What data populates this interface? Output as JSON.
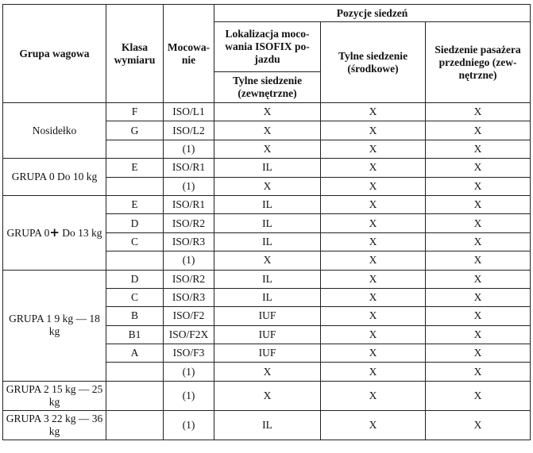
{
  "headers": {
    "weight_group": "Grupa wagowa",
    "size_class": "Klasa wymiaru",
    "mounting": "Mocowa- nie",
    "seat_positions": "Pozycje siedzeń",
    "isofix_location": "Lokalizacja moco- wania ISOFIX po- jazdu",
    "rear_outer": "Tylne siedzenie (zewnętrzne)",
    "rear_center": "Tylne siedzenie (środkowe)",
    "front_passenger": "Siedzenie pasażera przedniego (zew- nętrzne)"
  },
  "groups": [
    {
      "name": "Nosidełko",
      "rows": [
        {
          "cls": "F",
          "mount": "ISO/L1",
          "rear_outer": "X",
          "rear_center": "X",
          "front": "X"
        },
        {
          "cls": "G",
          "mount": "ISO/L2",
          "rear_outer": "X",
          "rear_center": "X",
          "front": "X"
        },
        {
          "cls": "",
          "mount": "(1)",
          "rear_outer": "X",
          "rear_center": "X",
          "front": "X"
        }
      ]
    },
    {
      "name": "GRUPA 0 Do 10 kg",
      "rows": [
        {
          "cls": "E",
          "mount": "ISO/R1",
          "rear_outer": "IL",
          "rear_center": "X",
          "front": "X"
        },
        {
          "cls": "",
          "mount": "(1)",
          "rear_outer": "X",
          "rear_center": "X",
          "front": "X"
        }
      ]
    },
    {
      "name_prefix": "GRUPA 0",
      "name_symbol": "+",
      "name_suffix": " Do 13 kg",
      "rows": [
        {
          "cls": "E",
          "mount": "ISO/R1",
          "rear_outer": "IL",
          "rear_center": "X",
          "front": "X"
        },
        {
          "cls": "D",
          "mount": "ISO/R2",
          "rear_outer": "IL",
          "rear_center": "X",
          "front": "X"
        },
        {
          "cls": "C",
          "mount": "ISO/R3",
          "rear_outer": "IL",
          "rear_center": "X",
          "front": "X"
        },
        {
          "cls": "",
          "mount": "(1)",
          "rear_outer": "X",
          "rear_center": "X",
          "front": "X"
        }
      ]
    },
    {
      "name": "GRUPA 1 9 kg — 18 kg",
      "rows": [
        {
          "cls": "D",
          "mount": "ISO/R2",
          "rear_outer": "IL",
          "rear_center": "X",
          "front": "X"
        },
        {
          "cls": "C",
          "mount": "ISO/R3",
          "rear_outer": "IL",
          "rear_center": "X",
          "front": "X"
        },
        {
          "cls": "B",
          "mount": "ISO/F2",
          "rear_outer": "IUF",
          "rear_center": "X",
          "front": "X"
        },
        {
          "cls": "B1",
          "mount": "ISO/F2X",
          "rear_outer": "IUF",
          "rear_center": "X",
          "front": "X"
        },
        {
          "cls": "A",
          "mount": "ISO/F3",
          "rear_outer": "IUF",
          "rear_center": "X",
          "front": "X"
        },
        {
          "cls": "",
          "mount": "(1)",
          "rear_outer": "X",
          "rear_center": "X",
          "front": "X"
        }
      ]
    },
    {
      "name": "GRUPA 2 15 kg — 25 kg",
      "rows": [
        {
          "cls": "",
          "mount": "(1)",
          "rear_outer": "X",
          "rear_center": "X",
          "front": "X"
        }
      ]
    },
    {
      "name": "GRUPA 3 22 kg — 36 kg",
      "rows": [
        {
          "cls": "",
          "mount": "(1)",
          "rear_outer": "IL",
          "rear_center": "X",
          "front": "X"
        }
      ]
    }
  ]
}
